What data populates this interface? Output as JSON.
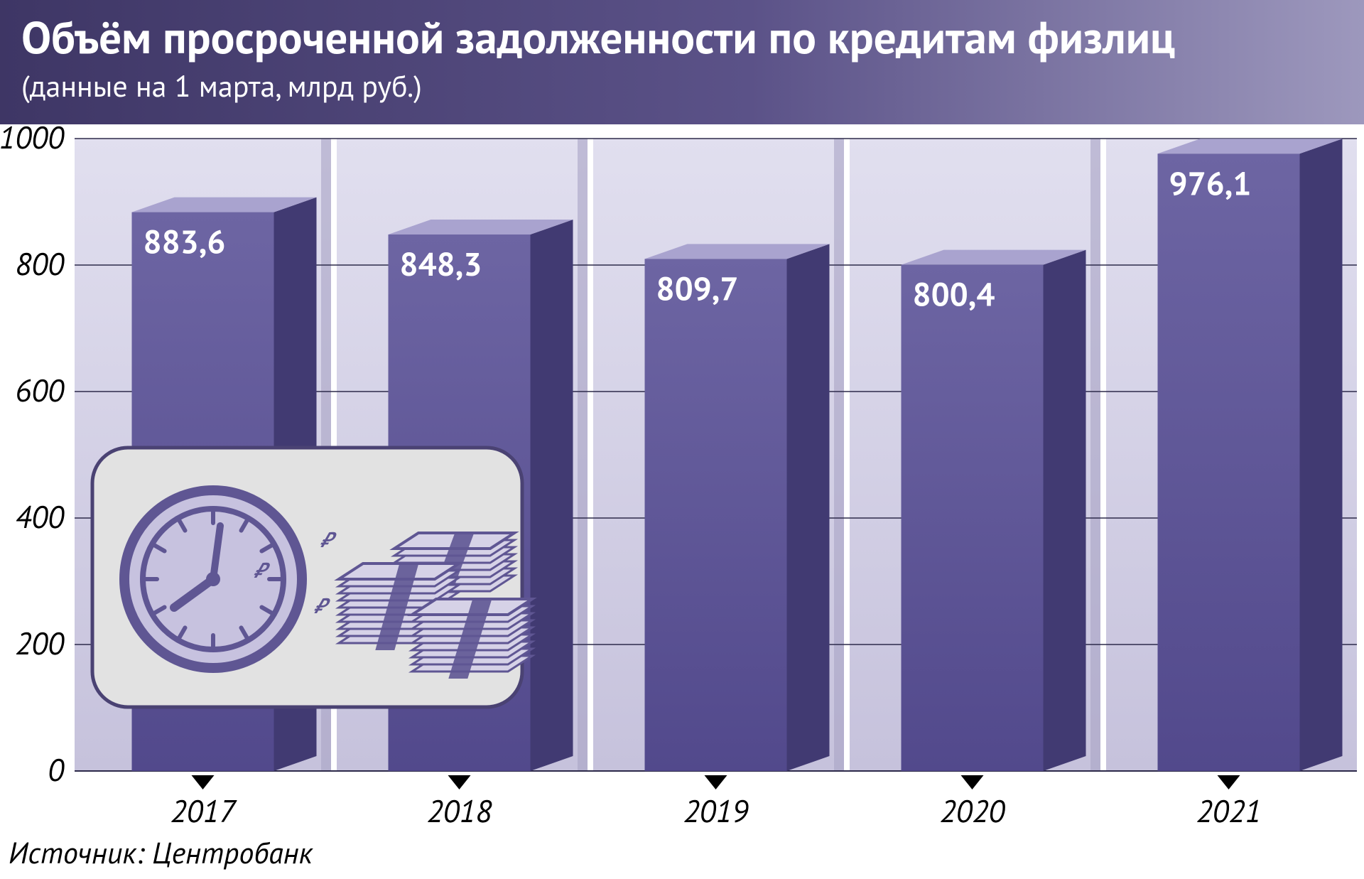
{
  "header": {
    "title": "Объём просроченной задолженности по кредитам физлиц",
    "subtitle": "(данные на 1 марта, млрд руб.)",
    "bg_gradient": [
      "#3e3665",
      "#5b5288",
      "#9d98bd"
    ],
    "text_color": "#ffffff",
    "title_fontSize": 63,
    "subtitle_fontSize": 42
  },
  "chart": {
    "type": "bar-3d",
    "categories": [
      "2017",
      "2018",
      "2019",
      "2020",
      "2021"
    ],
    "values": [
      883.6,
      848.3,
      809.7,
      800.4,
      976.1
    ],
    "value_labels": [
      "883,6",
      "848,3",
      "809,7",
      "800,4",
      "976,1"
    ],
    "ylim": [
      0,
      1000
    ],
    "ytick_step": 200,
    "yticks": [
      "0",
      "200",
      "400",
      "600",
      "800",
      "1000"
    ],
    "bar_width_front": 200,
    "bar_depth": 60,
    "plot_bg_top": "#e1dfef",
    "plot_bg_bottom": "#c6c2dc",
    "panel_shadow": "#a8a3c5",
    "panel_separator": "#ffffff",
    "bar_front_top": "#6d65a3",
    "bar_front_bottom": "#52498c",
    "bar_side": "#413a72",
    "bar_top": "#a9a3cf",
    "gridline_color": "#2d2a4a",
    "gridline_width": 1.5,
    "axis_font_size": 44,
    "bar_value_font_size": 46,
    "tick_marker_color": "#000000"
  },
  "icon_card": {
    "bg": "#e2e2e2",
    "border": "#4a4273",
    "radius": 50,
    "clock_color": "#5f5693",
    "money_color": "#5f5693"
  },
  "source": "Источник: Центробанк"
}
